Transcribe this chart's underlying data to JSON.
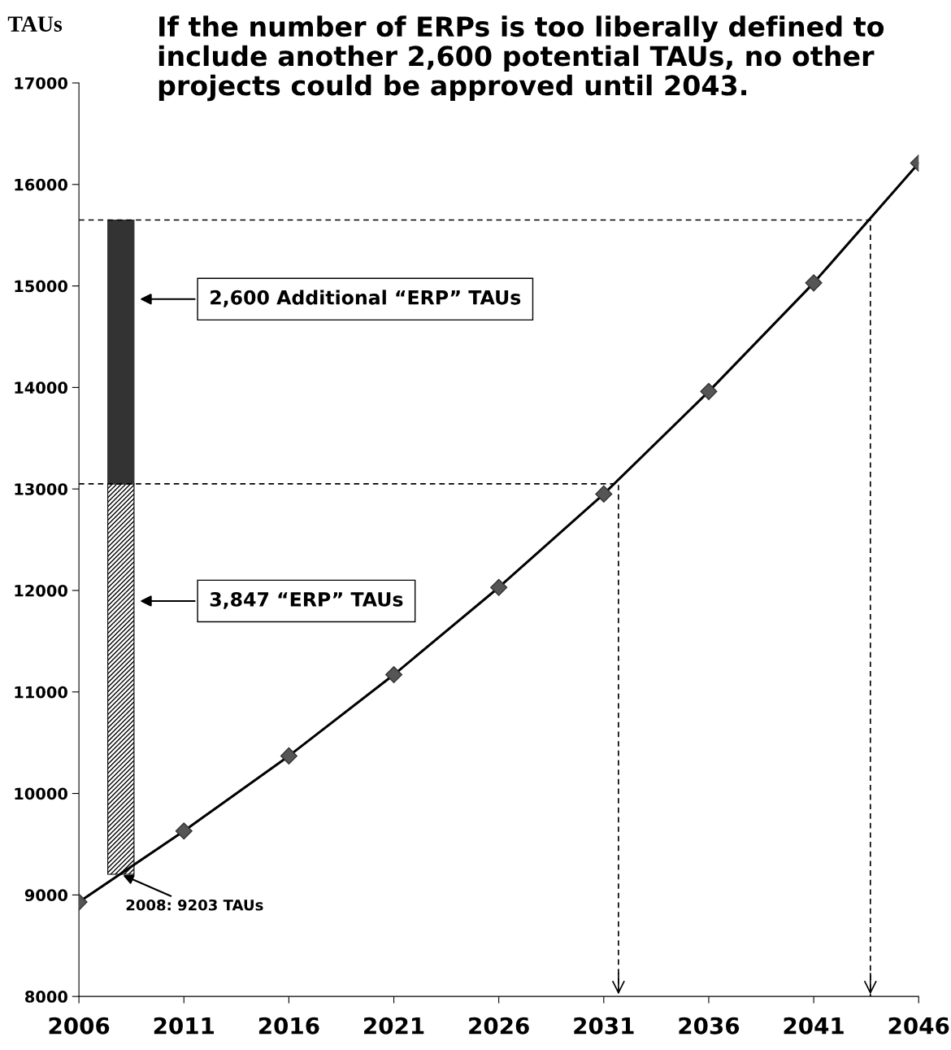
{
  "chart_data": {
    "type": "line",
    "title": "If the number of ERPs is too liberally defined to\ninclude another 2,600 potential TAUs, no other\nprojects could be approved until 2043.",
    "ylabel": "TAUs",
    "xlim": [
      2006,
      2046
    ],
    "xticks": [
      2006,
      2011,
      2016,
      2021,
      2026,
      2031,
      2036,
      2041,
      2046
    ],
    "ylim": [
      8000,
      17000
    ],
    "yticks": [
      8000,
      9000,
      10000,
      11000,
      12000,
      13000,
      14000,
      15000,
      16000,
      17000
    ],
    "grid": false,
    "legend": false,
    "series": [
      {
        "color": "#000000",
        "marker": "diamond",
        "x": [
          2006,
          2011,
          2016,
          2021,
          2026,
          2031,
          2036,
          2041,
          2046
        ],
        "values": [
          8930,
          9630,
          10370,
          11170,
          12030,
          12950,
          13960,
          15030,
          16210
        ]
      },
      {
        "type": "bar",
        "name": "3,847 “ERP” TAUs",
        "color": "#000000",
        "x": [
          2008
        ],
        "base": [
          9203
        ],
        "values": [
          3847
        ]
      },
      {
        "type": "bar",
        "name": "2,600 Additional “ERP” TAUs",
        "color": "#333333",
        "x": [
          2008
        ],
        "base": [
          13050
        ],
        "values": [
          2600
        ]
      },
      {
        "type": "line",
        "color": "#000000",
        "line_style": "dashed",
        "marker": "none",
        "x": [
          2006,
          2031.7,
          2031.7
        ],
        "values": [
          13050,
          13050,
          8000
        ]
      },
      {
        "type": "line",
        "color": "#000000",
        "line_style": "dashed",
        "marker": "none",
        "x": [
          2006,
          2043.7,
          2043.7
        ],
        "values": [
          15650,
          15650,
          8000
        ]
      }
    ],
    "annotations": [
      {
        "text": "2008: 9203 TAUs",
        "x": 2008,
        "y": 9203
      }
    ]
  }
}
